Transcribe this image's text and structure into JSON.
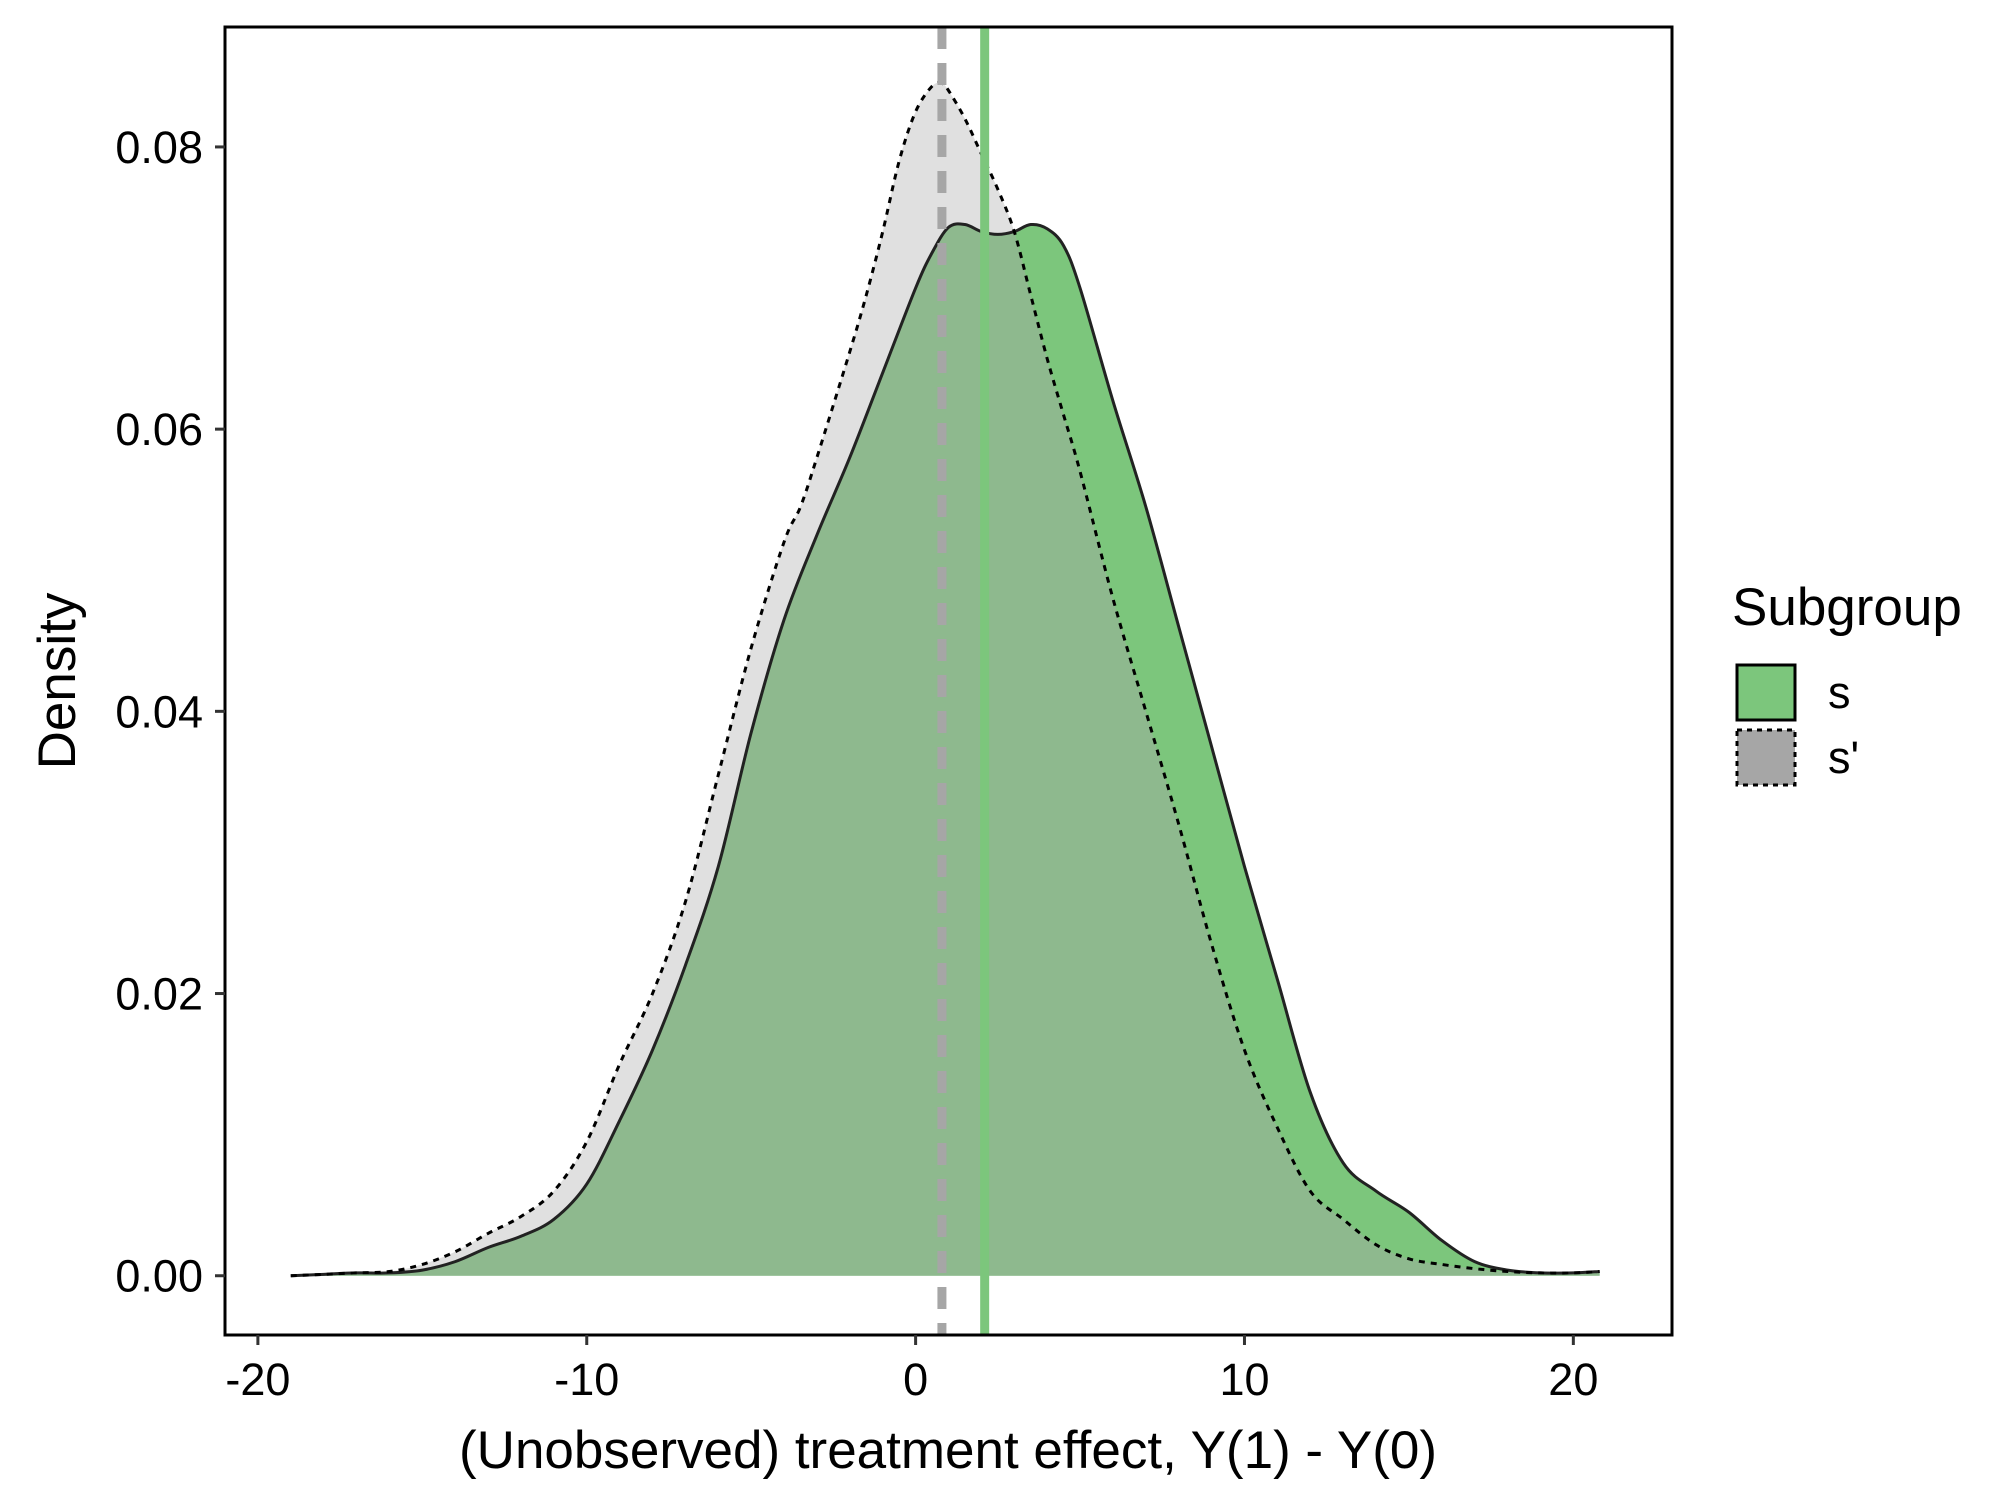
{
  "chart_data": {
    "type": "area",
    "title": "",
    "xlabel": "(Unobserved) treatment effect, Y(1) - Y(0)",
    "ylabel": "Density",
    "xlim": [
      -21,
      23
    ],
    "ylim": [
      -0.0042,
      0.0885
    ],
    "x_ticks": [
      -20,
      -10,
      0,
      10,
      20
    ],
    "x_tick_labels": [
      "-20",
      "-10",
      "0",
      "10",
      "20"
    ],
    "y_ticks": [
      0.0,
      0.02,
      0.04,
      0.06,
      0.08
    ],
    "y_tick_labels": [
      "0.00",
      "0.02",
      "0.04",
      "0.06",
      "0.08"
    ],
    "grid": false,
    "legend": {
      "title": "Subgroup",
      "position": "right",
      "entries": [
        {
          "label": "s",
          "fill": "#7CC67C",
          "line": "solid"
        },
        {
          "label": "s'",
          "fill": "#A6A6A6",
          "line": "dotted"
        }
      ]
    },
    "series": [
      {
        "name": "s'",
        "fill": "#E0E0E0",
        "line_style": "dotted",
        "line_color": "#000000",
        "mean_line": {
          "x": 0.8,
          "color": "#A6A6A6",
          "style": "dashed"
        },
        "x": [
          -19,
          -18,
          -17,
          -16,
          -15,
          -14,
          -13,
          -12,
          -11,
          -10,
          -9,
          -8,
          -7,
          -6,
          -5,
          -4,
          -3.5,
          -3,
          -2,
          -1.5,
          -1,
          -0.5,
          0,
          0.5,
          0.8,
          1,
          1.5,
          2,
          2.5,
          3,
          3.5,
          4,
          4.5,
          5,
          6,
          7,
          8,
          9,
          10,
          11,
          12,
          13,
          14,
          15,
          16,
          17,
          18,
          19,
          20,
          20.8
        ],
        "y": [
          0.0,
          0.0001,
          0.0002,
          0.0003,
          0.0008,
          0.0017,
          0.003,
          0.0042,
          0.006,
          0.0095,
          0.015,
          0.02,
          0.0265,
          0.0355,
          0.0445,
          0.052,
          0.0545,
          0.058,
          0.0655,
          0.0695,
          0.074,
          0.079,
          0.0825,
          0.0843,
          0.0845,
          0.084,
          0.082,
          0.0795,
          0.077,
          0.074,
          0.0695,
          0.065,
          0.061,
          0.057,
          0.048,
          0.04,
          0.032,
          0.0235,
          0.016,
          0.0105,
          0.006,
          0.004,
          0.0022,
          0.0012,
          0.0008,
          0.0005,
          0.0003,
          0.0002,
          0.0002,
          0.0003
        ]
      },
      {
        "name": "s",
        "fill": "#7CC67C",
        "line_style": "solid",
        "line_color": "#222222",
        "mean_line": {
          "x": 2.1,
          "color": "#7CC67C",
          "style": "solid"
        },
        "x": [
          -19,
          -18,
          -17,
          -16,
          -15,
          -14,
          -13,
          -12,
          -11,
          -10,
          -9,
          -8,
          -7,
          -6,
          -5,
          -4,
          -3,
          -2,
          -1,
          0,
          0.5,
          1,
          1.5,
          2,
          2.5,
          3,
          3.5,
          4,
          4.5,
          5,
          6,
          7,
          8,
          9,
          10,
          11,
          12,
          13,
          14,
          15,
          16,
          17,
          18,
          19,
          20,
          20.8
        ],
        "y": [
          0.0,
          0.0001,
          0.0002,
          0.0002,
          0.0004,
          0.001,
          0.002,
          0.0028,
          0.004,
          0.0065,
          0.011,
          0.016,
          0.022,
          0.029,
          0.0385,
          0.0465,
          0.0525,
          0.058,
          0.064,
          0.07,
          0.0725,
          0.0743,
          0.0745,
          0.074,
          0.0738,
          0.074,
          0.0745,
          0.0742,
          0.073,
          0.07,
          0.062,
          0.0545,
          0.046,
          0.0375,
          0.029,
          0.021,
          0.013,
          0.008,
          0.006,
          0.0045,
          0.0025,
          0.001,
          0.0004,
          0.0002,
          0.0002,
          0.0003
        ]
      }
    ]
  }
}
